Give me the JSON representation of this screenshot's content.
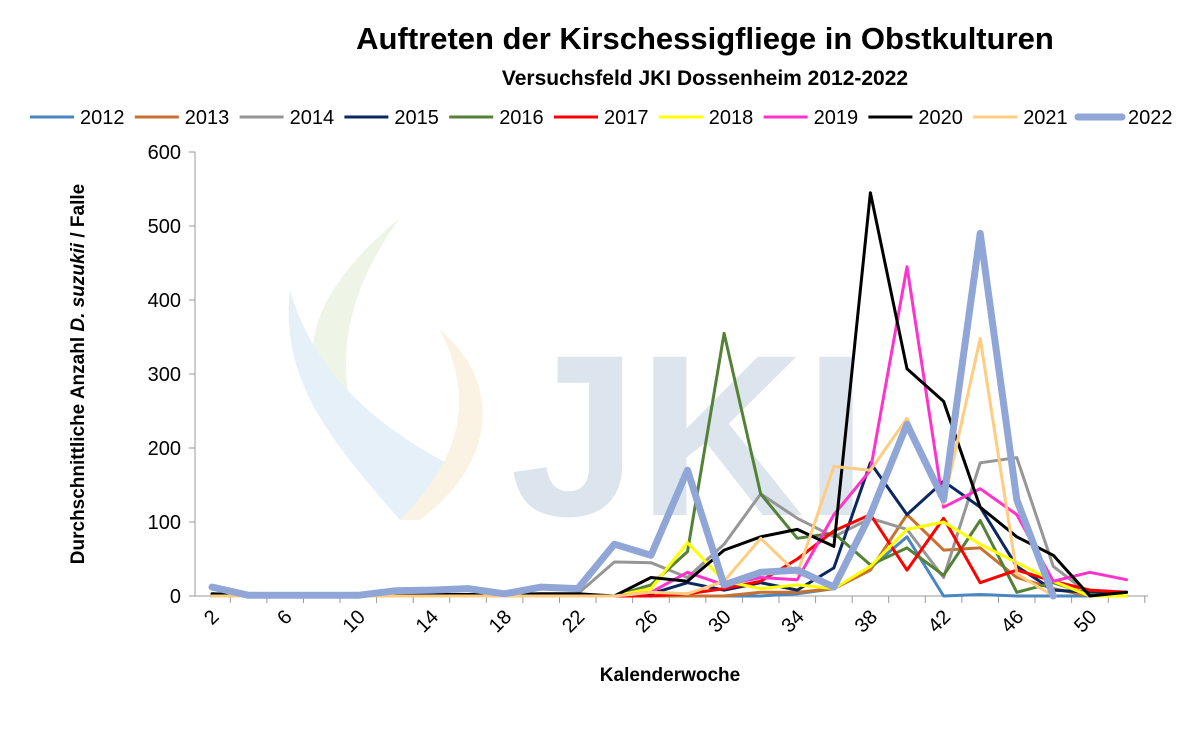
{
  "chart_data": {
    "type": "line",
    "title": "Auftreten der Kirschessigfliege in Obstkulturen",
    "subtitle": "Versuchsfeld JKI Dossenheim 2012-2022",
    "xlabel": "Kalenderwoche",
    "ylabel_parts": [
      "Durchschnittliche Anzahl ",
      "D. suzukii",
      " / Falle"
    ],
    "ylim": [
      0,
      600
    ],
    "yticks": [
      0,
      100,
      200,
      300,
      400,
      500,
      600
    ],
    "xticks": [
      2,
      6,
      10,
      14,
      18,
      22,
      26,
      30,
      34,
      38,
      42,
      46,
      50
    ],
    "legend_position": "top",
    "watermark": "JKI",
    "x": [
      2,
      4,
      6,
      8,
      10,
      12,
      14,
      16,
      18,
      20,
      22,
      24,
      26,
      28,
      30,
      32,
      34,
      36,
      38,
      40,
      42,
      44,
      46,
      48,
      50,
      52
    ],
    "series": [
      {
        "name": "2012",
        "color": "#4A86C0",
        "width": 3,
        "values": [
          0,
          0,
          0,
          0,
          0,
          0,
          0,
          0,
          0,
          0,
          0,
          0,
          0,
          0,
          0,
          0,
          3,
          10,
          38,
          80,
          0,
          2,
          0,
          0,
          0,
          0
        ]
      },
      {
        "name": "2013",
        "color": "#C8702E",
        "width": 3,
        "values": [
          0,
          0,
          0,
          0,
          0,
          0,
          0,
          0,
          0,
          0,
          0,
          0,
          0,
          0,
          0,
          5,
          5,
          10,
          35,
          110,
          62,
          65,
          25,
          10,
          0,
          0
        ]
      },
      {
        "name": "2014",
        "color": "#969696",
        "width": 3,
        "values": [
          0,
          0,
          0,
          0,
          0,
          0,
          0,
          0,
          0,
          0,
          3,
          46,
          45,
          25,
          70,
          138,
          105,
          80,
          105,
          90,
          25,
          180,
          187,
          40,
          2,
          0
        ]
      },
      {
        "name": "2015",
        "color": "#0A2760",
        "width": 3,
        "values": [
          0,
          0,
          0,
          0,
          0,
          0,
          0,
          0,
          0,
          0,
          0,
          0,
          3,
          18,
          8,
          18,
          8,
          38,
          180,
          110,
          155,
          120,
          40,
          8,
          5,
          5
        ]
      },
      {
        "name": "2016",
        "color": "#538135",
        "width": 3,
        "values": [
          0,
          0,
          0,
          0,
          0,
          0,
          0,
          0,
          0,
          0,
          0,
          0,
          15,
          60,
          355,
          138,
          78,
          85,
          42,
          65,
          28,
          102,
          5,
          18,
          2,
          0
        ]
      },
      {
        "name": "2017",
        "color": "#FF0000",
        "width": 3,
        "values": [
          0,
          0,
          0,
          0,
          0,
          0,
          0,
          0,
          0,
          0,
          0,
          0,
          0,
          3,
          10,
          20,
          50,
          88,
          110,
          35,
          105,
          18,
          35,
          20,
          8,
          5
        ]
      },
      {
        "name": "2018",
        "color": "#FFFF00",
        "width": 3,
        "values": [
          0,
          0,
          0,
          0,
          0,
          0,
          0,
          0,
          0,
          0,
          0,
          0,
          10,
          72,
          20,
          10,
          15,
          10,
          40,
          90,
          100,
          70,
          45,
          20,
          0,
          0
        ]
      },
      {
        "name": "2019",
        "color": "#FF33CC",
        "width": 3,
        "values": [
          0,
          0,
          0,
          0,
          0,
          0,
          0,
          0,
          0,
          0,
          0,
          0,
          5,
          32,
          15,
          25,
          22,
          110,
          170,
          445,
          120,
          145,
          110,
          20,
          32,
          22
        ]
      },
      {
        "name": "2020",
        "color": "#000000",
        "width": 3,
        "values": [
          3,
          1,
          1,
          1,
          1,
          2,
          2,
          2,
          2,
          3,
          3,
          0,
          25,
          20,
          62,
          80,
          90,
          67,
          545,
          307,
          263,
          120,
          80,
          55,
          0,
          5
        ]
      },
      {
        "name": "2021",
        "color": "#FFCC80",
        "width": 3,
        "values": [
          0,
          0,
          0,
          0,
          0,
          0,
          0,
          0,
          0,
          0,
          0,
          0,
          5,
          3,
          20,
          78,
          30,
          175,
          170,
          240,
          125,
          348,
          30,
          0,
          null,
          null
        ]
      },
      {
        "name": "2022",
        "color": "#8FA6D6",
        "width": 7,
        "values": [
          12,
          1,
          1,
          1,
          1,
          7,
          8,
          10,
          3,
          12,
          10,
          70,
          55,
          170,
          15,
          32,
          35,
          12,
          110,
          232,
          130,
          490,
          130,
          0,
          null,
          null
        ]
      }
    ]
  }
}
